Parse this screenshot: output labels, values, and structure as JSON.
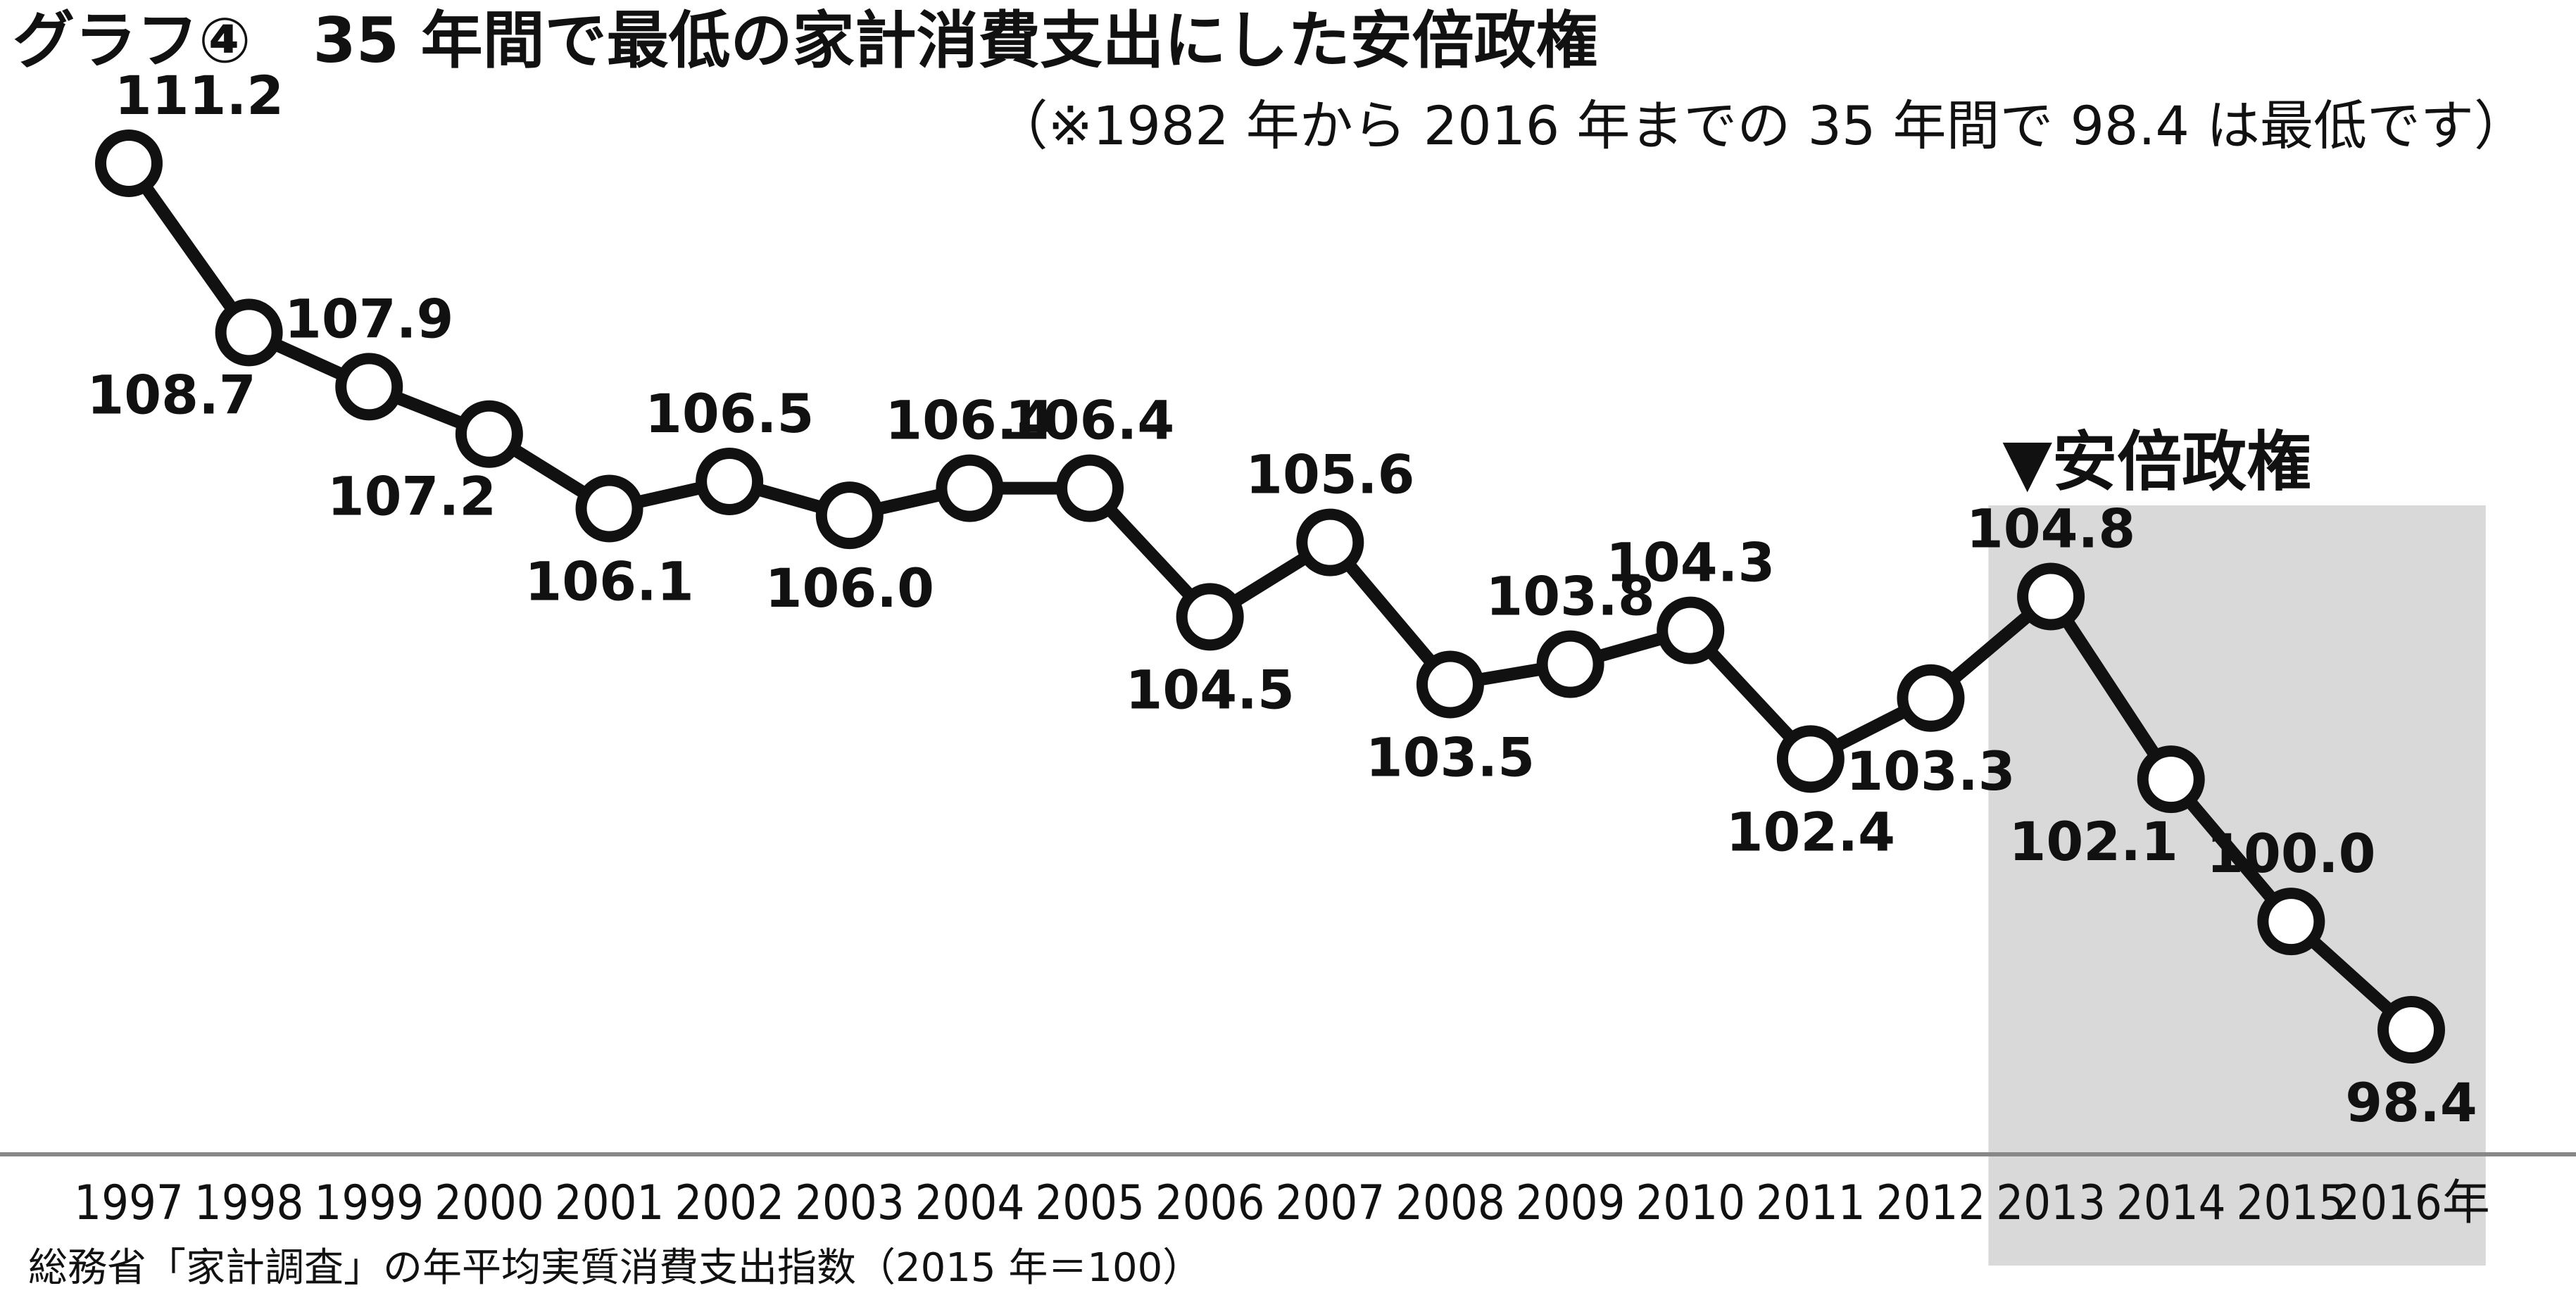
{
  "title": "グラフ④　35 年間で最低の家計消費支出にした安倍政権",
  "subtitle": "（※1982 年から 2016 年までの 35 年間で 98.4 は最低です）",
  "source_note": "総務省「家計調査」の年平均実質消費支出指数（2015 年＝100）",
  "chart_data": {
    "type": "line",
    "title": "グラフ④　35 年間で最低の家計消費支出にした安倍政権",
    "subtitle": "（※1982 年から 2016 年までの 35 年間で 98.4 は最低です）",
    "xlabel": "",
    "ylabel": "",
    "x": [
      "1997",
      "1998",
      "1999",
      "2000",
      "2001",
      "2002",
      "2003",
      "2004",
      "2005",
      "2006",
      "2007",
      "2008",
      "2009",
      "2010",
      "2011",
      "2012",
      "2013",
      "2014",
      "2015",
      "2016"
    ],
    "x_tick_labels": [
      "1997",
      "1998",
      "1999",
      "2000",
      "2001",
      "2002",
      "2003",
      "2004",
      "2005",
      "2006",
      "2007",
      "2008",
      "2009",
      "2010",
      "2011",
      "2012",
      "2013",
      "2014",
      "2015",
      "2016年"
    ],
    "values": [
      111.2,
      108.7,
      107.9,
      107.2,
      106.1,
      106.5,
      106.0,
      106.4,
      106.4,
      104.5,
      105.6,
      103.5,
      103.8,
      104.3,
      102.4,
      103.3,
      104.8,
      102.1,
      100.0,
      98.4
    ],
    "data_labels": [
      "111.2",
      "108.7",
      "107.9",
      "107.2",
      "106.1",
      "106.5",
      "106.0",
      "106.4",
      "106.4",
      "104.5",
      "105.6",
      "103.5",
      "103.8",
      "104.3",
      "102.4",
      "103.3",
      "104.8",
      "102.1",
      "100.0",
      "98.4"
    ],
    "label_positions": [
      "above-right",
      "below-left",
      "above",
      "below-left",
      "below",
      "above",
      "below",
      "above",
      "above",
      "below",
      "above",
      "below",
      "above",
      "above",
      "below",
      "below",
      "above",
      "below-left",
      "above",
      "below"
    ],
    "ylim": [
      97.0,
      112.0
    ],
    "grid": false,
    "legend": "none",
    "shaded_region": {
      "from": "2013",
      "to": "2016",
      "label": "▼安倍政権",
      "color": "#d9d9d9"
    },
    "colors": {
      "line": "#111111",
      "marker_fill": "#ffffff",
      "axis": "#888888"
    }
  }
}
